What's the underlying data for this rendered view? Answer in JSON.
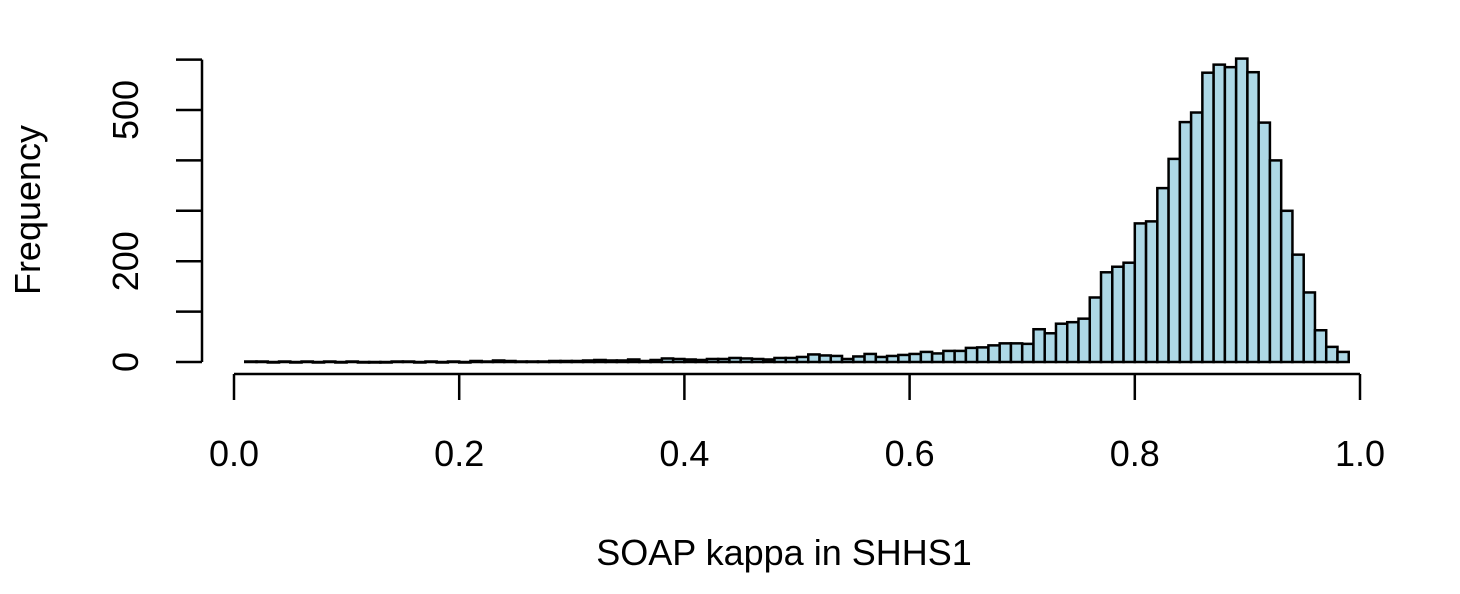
{
  "chart_data": {
    "type": "bar",
    "title": "",
    "xlabel": "SOAP kappa in SHHS1",
    "ylabel": "Frequency",
    "xlim": [
      0,
      1
    ],
    "ylim": [
      0,
      600
    ],
    "bin_width": 0.01,
    "bin_start": 0.01,
    "x_ticks": [
      "0.0",
      "0.2",
      "0.4",
      "0.6",
      "0.8",
      "1.0"
    ],
    "x_tick_values": [
      0,
      0.2,
      0.4,
      0.6,
      0.8,
      1.0
    ],
    "y_ticks": [
      "0",
      "200",
      "500"
    ],
    "y_tick_values": [
      0,
      200,
      500
    ],
    "y_minor_ticks": [
      100,
      300,
      400,
      600
    ],
    "grid": false,
    "bar_color": "#ADD8E6",
    "edge_color": "#000000",
    "values": [
      1,
      1,
      0,
      1,
      0,
      1,
      0,
      1,
      0,
      1,
      0,
      0,
      0,
      1,
      1,
      0,
      1,
      0,
      1,
      0,
      2,
      1,
      3,
      2,
      1,
      1,
      1,
      2,
      2,
      2,
      3,
      4,
      3,
      3,
      5,
      2,
      4,
      7,
      6,
      5,
      4,
      6,
      6,
      8,
      7,
      6,
      5,
      8,
      8,
      10,
      15,
      13,
      12,
      6,
      11,
      16,
      10,
      12,
      14,
      16,
      20,
      17,
      22,
      22,
      28,
      29,
      33,
      37,
      37,
      36,
      65,
      57,
      76,
      79,
      86,
      128,
      178,
      189,
      197,
      275,
      279,
      345,
      403,
      476,
      495,
      574,
      590,
      585,
      602,
      575,
      475,
      400,
      300,
      213,
      138,
      63,
      30,
      20
    ]
  }
}
